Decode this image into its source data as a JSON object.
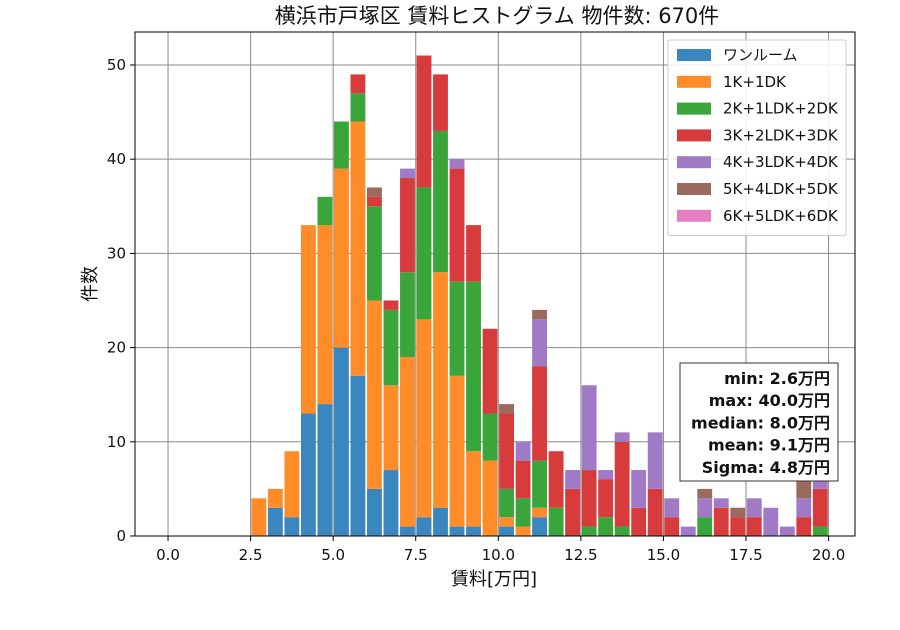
{
  "chart_data": {
    "type": "bar",
    "title": "横浜市戸塚区 賃料ヒストグラム 物件数: 670件",
    "xlabel": "賃料[万円]",
    "ylabel": "件数",
    "xlim": [
      -1.0,
      20.8
    ],
    "ylim": [
      0,
      53.5
    ],
    "xticks": [
      0.0,
      2.5,
      5.0,
      7.5,
      10.0,
      12.5,
      15.0,
      17.5,
      20.0
    ],
    "xtick_labels": [
      "0.0",
      "2.5",
      "5.0",
      "7.5",
      "10.0",
      "12.5",
      "15.0",
      "17.5",
      "20.0"
    ],
    "yticks": [
      0,
      10,
      20,
      30,
      40,
      50
    ],
    "ytick_labels": [
      "0",
      "10",
      "20",
      "30",
      "40",
      "50"
    ],
    "grid": true,
    "stacked": true,
    "bin_width": 0.5,
    "bar_fraction": 0.9,
    "legend_position": "top-right",
    "bins": [
      2.5,
      3.0,
      3.5,
      4.0,
      4.5,
      5.0,
      5.5,
      6.0,
      6.5,
      7.0,
      7.5,
      8.0,
      8.5,
      9.0,
      9.5,
      10.0,
      10.5,
      11.0,
      11.5,
      12.0,
      12.5,
      13.0,
      13.5,
      14.0,
      14.5,
      15.0,
      15.5,
      16.0,
      16.5,
      17.0,
      17.5,
      18.0,
      18.5,
      19.0,
      19.5
    ],
    "series": [
      {
        "name": "ワンルーム",
        "color": "#3a87bf",
        "values": [
          0,
          3,
          2,
          13,
          14,
          20,
          17,
          5,
          7,
          1,
          2,
          3,
          1,
          1,
          0,
          1,
          0,
          2,
          0,
          0,
          0,
          0,
          0,
          0,
          0,
          0,
          0,
          0,
          0,
          0,
          0,
          0,
          0,
          0,
          0
        ]
      },
      {
        "name": "1K+1DK",
        "color": "#ff8c28",
        "values": [
          4,
          2,
          7,
          20,
          19,
          19,
          27,
          20,
          9,
          18,
          21,
          25,
          16,
          8,
          8,
          1,
          1,
          1,
          0,
          0,
          0,
          0,
          0,
          0,
          0,
          0,
          0,
          0,
          0,
          0,
          0,
          0,
          0,
          0,
          0
        ]
      },
      {
        "name": "2K+1LDK+2DK",
        "color": "#3aa53a",
        "values": [
          0,
          0,
          0,
          0,
          3,
          5,
          3,
          10,
          8,
          9,
          14,
          15,
          10,
          18,
          5,
          3,
          3,
          5,
          3,
          0,
          1,
          2,
          1,
          0,
          0,
          0,
          0,
          2,
          0,
          0,
          0,
          0,
          0,
          0,
          1
        ]
      },
      {
        "name": "3K+2LDK+3DK",
        "color": "#d83b3c",
        "values": [
          0,
          0,
          0,
          0,
          0,
          0,
          2,
          1,
          1,
          10,
          14,
          6,
          12,
          6,
          9,
          8,
          4,
          10,
          6,
          5,
          6,
          4,
          9,
          3,
          5,
          2,
          0,
          0,
          3,
          2,
          2,
          0,
          0,
          2,
          4
        ]
      },
      {
        "name": "4K+3LDK+4DK",
        "color": "#a07ac7",
        "values": [
          0,
          0,
          0,
          0,
          0,
          0,
          0,
          0,
          0,
          1,
          0,
          0,
          1,
          0,
          0,
          0,
          2,
          5,
          0,
          2,
          9,
          1,
          1,
          4,
          6,
          2,
          1,
          2,
          1,
          0,
          2,
          3,
          1,
          2,
          1
        ]
      },
      {
        "name": "5K+4LDK+5DK",
        "color": "#9a6a5c",
        "values": [
          0,
          0,
          0,
          0,
          0,
          0,
          0,
          1,
          0,
          0,
          0,
          0,
          0,
          0,
          0,
          1,
          0,
          1,
          0,
          0,
          0,
          0,
          0,
          0,
          0,
          0,
          0,
          1,
          0,
          1,
          0,
          0,
          0,
          2,
          0
        ]
      },
      {
        "name": "6K+5LDK+6DK",
        "color": "#e57fc3",
        "values": [
          0,
          0,
          0,
          0,
          0,
          0,
          0,
          0,
          0,
          0,
          0,
          0,
          0,
          0,
          0,
          0,
          0,
          0,
          0,
          0,
          0,
          0,
          0,
          0,
          0,
          0,
          0,
          0,
          0,
          0,
          0,
          0,
          0,
          0,
          1
        ]
      }
    ],
    "stats": [
      "min: 2.6万円",
      "max: 40.0万円",
      "median: 8.0万円",
      "mean: 9.1万円",
      "Sigma: 4.8万円"
    ]
  }
}
